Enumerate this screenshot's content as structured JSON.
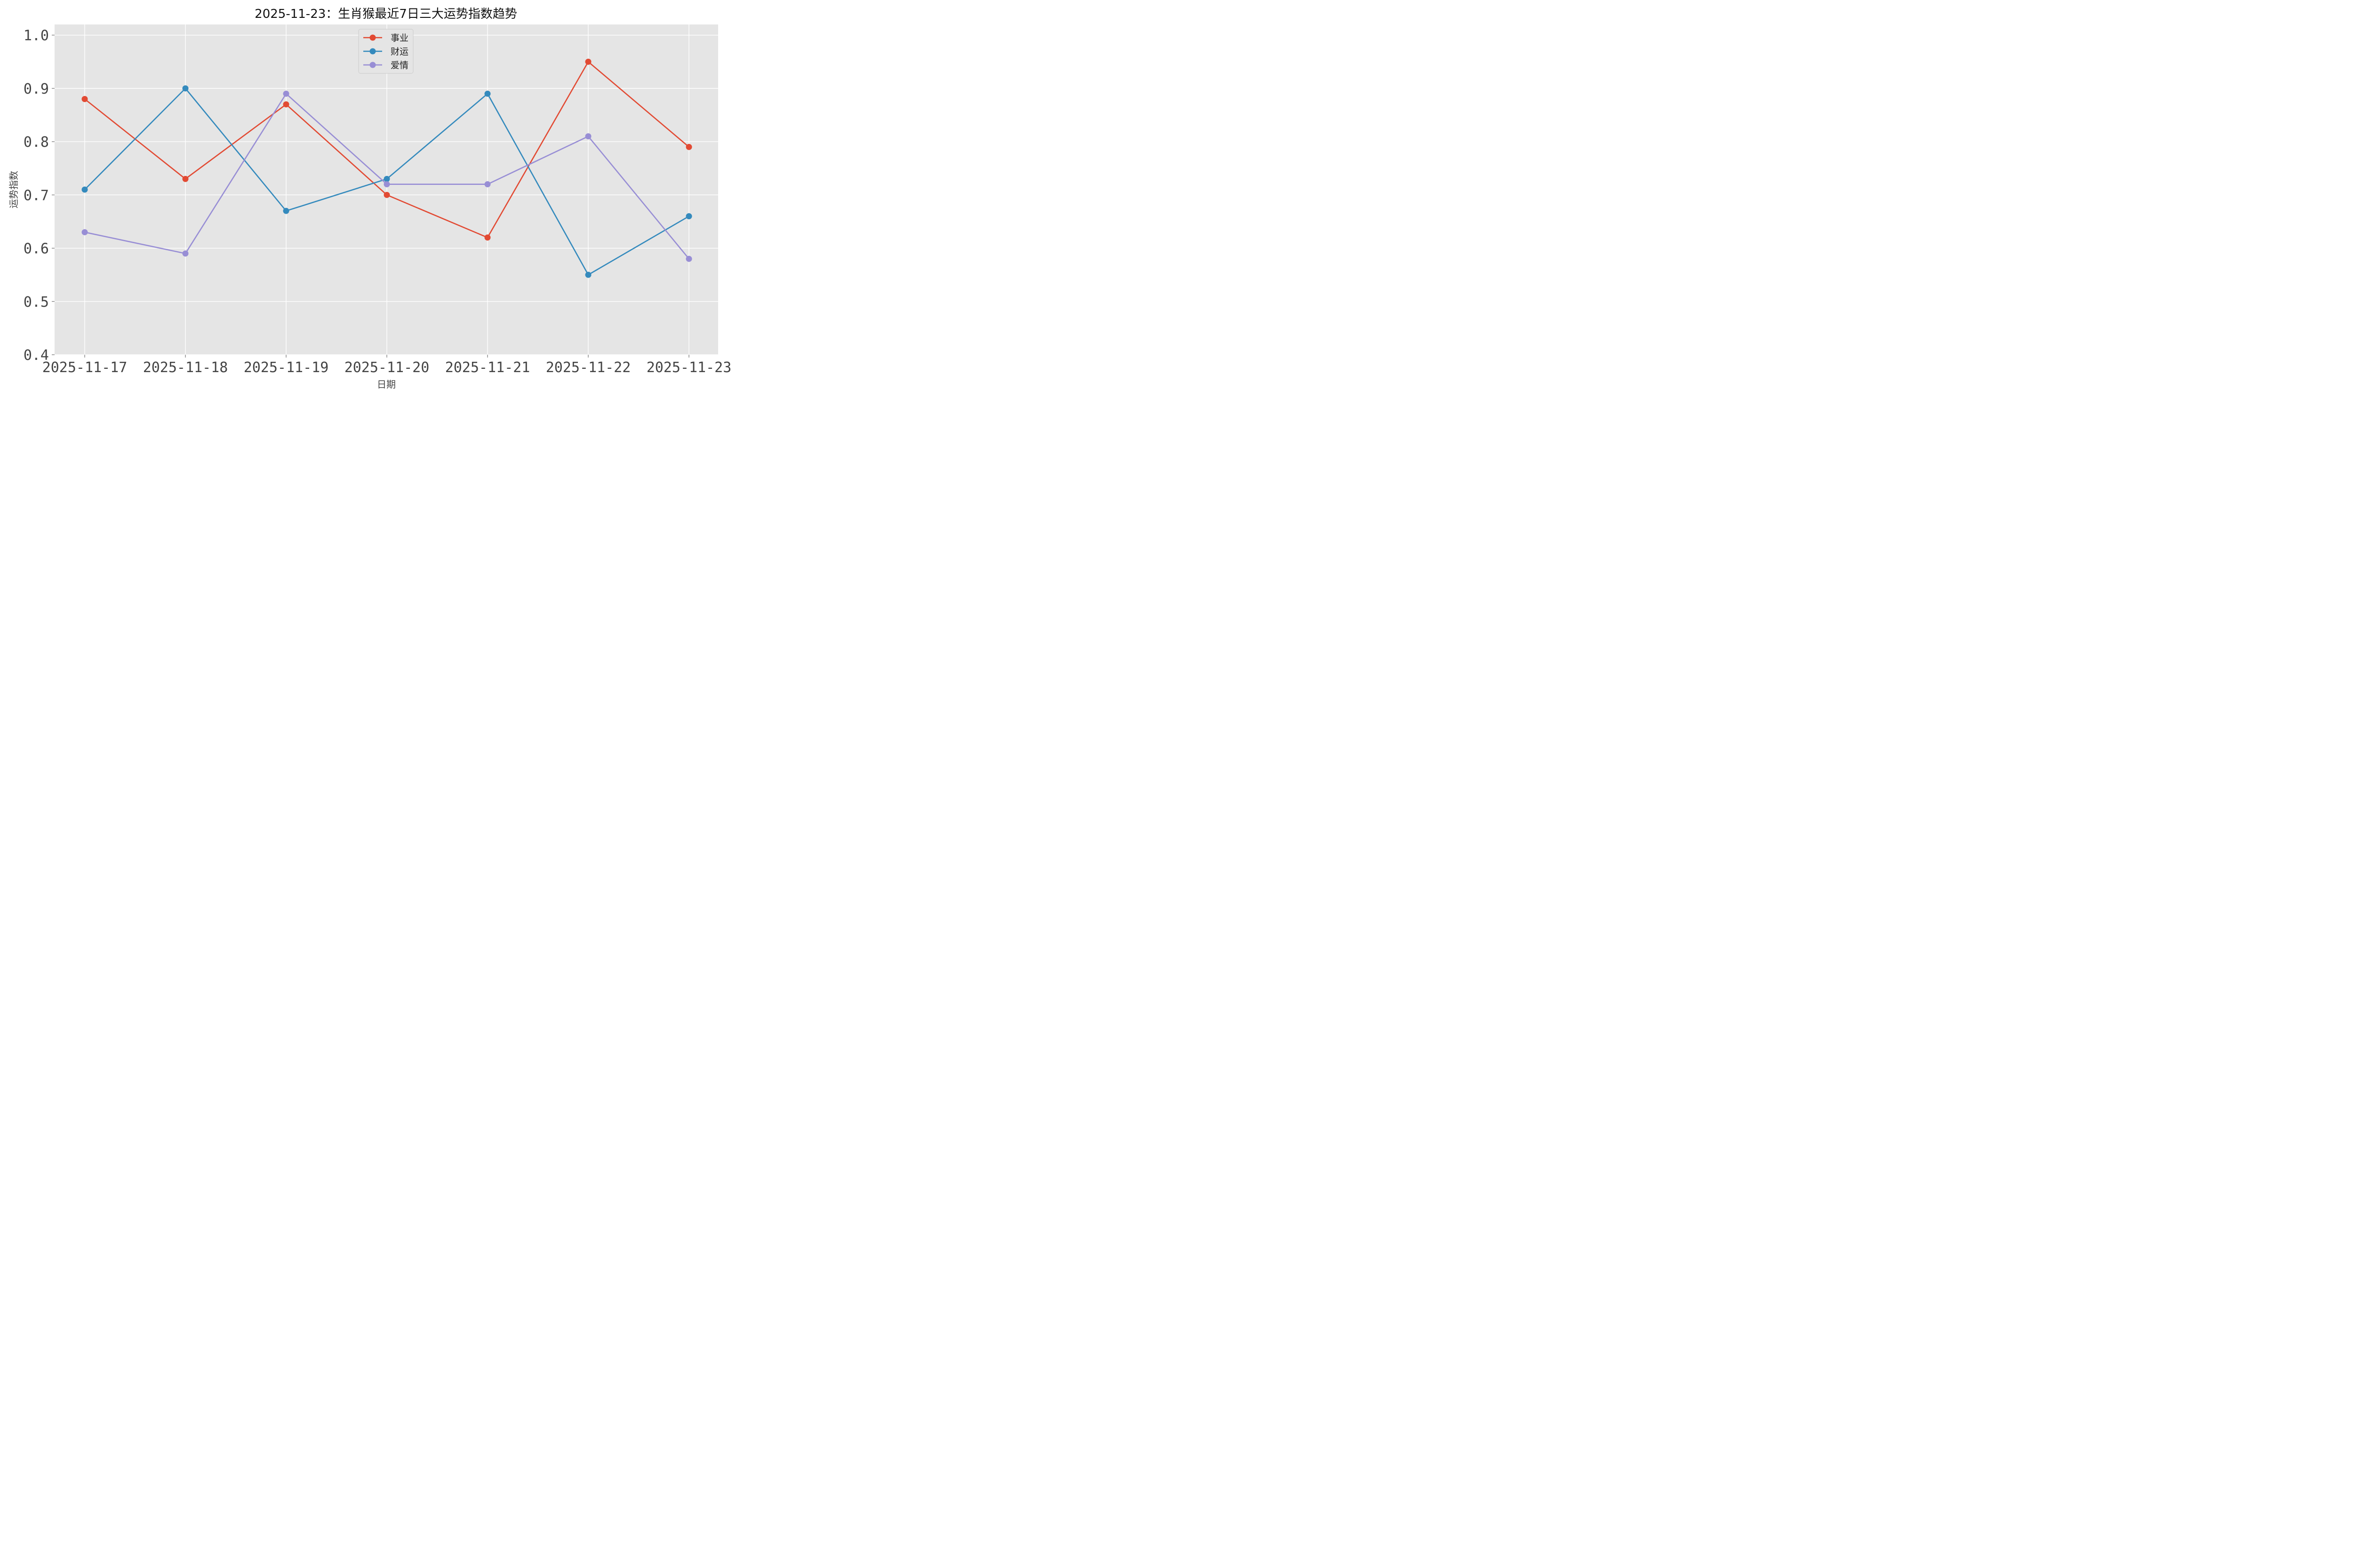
{
  "chart_data": {
    "type": "line",
    "title": "2025-11-23：生肖猴最近7日三大运势指数趋势",
    "xlabel": "日期",
    "ylabel": "运势指数",
    "categories": [
      "2025-11-17",
      "2025-11-18",
      "2025-11-19",
      "2025-11-20",
      "2025-11-21",
      "2025-11-22",
      "2025-11-23"
    ],
    "ylim": [
      0.4,
      1.02
    ],
    "yticks": [
      "0.4",
      "0.5",
      "0.6",
      "0.7",
      "0.8",
      "0.9",
      "1.0"
    ],
    "grid": true,
    "legend_position": "top-center",
    "series": [
      {
        "name": "事业",
        "color": "#E24A33",
        "values": [
          0.88,
          0.73,
          0.87,
          0.7,
          0.62,
          0.95,
          0.79
        ]
      },
      {
        "name": "财运",
        "color": "#348ABD",
        "values": [
          0.71,
          0.9,
          0.67,
          0.73,
          0.89,
          0.55,
          0.66
        ]
      },
      {
        "name": "爱情",
        "color": "#988ED5",
        "values": [
          0.63,
          0.59,
          0.89,
          0.72,
          0.72,
          0.81,
          0.58
        ]
      }
    ]
  }
}
